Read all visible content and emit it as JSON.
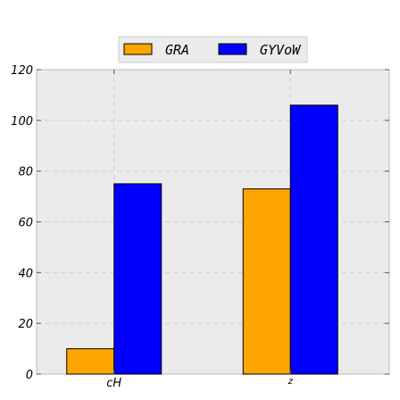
{
  "chart_data": {
    "type": "bar",
    "categories": [
      "cH",
      "z"
    ],
    "series": [
      {
        "name": "GRA",
        "values": [
          10,
          73
        ],
        "color": "#FFA500"
      },
      {
        "name": "GYVoW",
        "values": [
          75,
          106
        ],
        "color": "#0000FF"
      }
    ],
    "title": "",
    "xlabel": "",
    "ylabel": "",
    "ylim": [
      0,
      120
    ],
    "yticks": [
      0,
      20,
      40,
      60,
      80,
      100,
      120
    ],
    "grid": true,
    "legend_position": "top-center",
    "background": "#EBEBEB"
  }
}
